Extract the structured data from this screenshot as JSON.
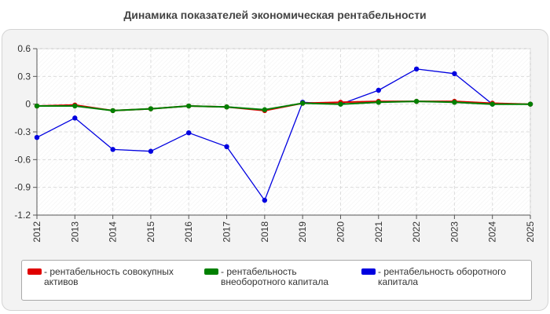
{
  "chart_data": {
    "type": "line",
    "title": "Динамика показателей экономическая рентабельности",
    "x": [
      "2012",
      "2013",
      "2014",
      "2015",
      "2016",
      "2017",
      "2018",
      "2019",
      "2020",
      "2021",
      "2022",
      "2023",
      "2024",
      "2025"
    ],
    "y_ticks": [
      "0.6",
      "0.3",
      "0",
      "-0.3",
      "-0.6",
      "-0.9",
      "-1.2"
    ],
    "ylim": [
      -1.2,
      0.6
    ],
    "grid": true,
    "legend_position": "bottom",
    "series": [
      {
        "name": "рентабельность совокупных активов",
        "color": "#e00000",
        "values": [
          -0.02,
          -0.01,
          -0.07,
          -0.05,
          -0.02,
          -0.03,
          -0.07,
          0.01,
          0.02,
          0.03,
          0.03,
          0.03,
          0.01,
          0.0
        ]
      },
      {
        "name": "рентабельность внеоборотного капитала",
        "color": "#008000",
        "values": [
          -0.02,
          -0.02,
          -0.07,
          -0.05,
          -0.02,
          -0.03,
          -0.06,
          0.01,
          0.0,
          0.02,
          0.03,
          0.02,
          0.0,
          0.0
        ]
      },
      {
        "name": "рентабельность оборотного капитала",
        "color": "#0000e0",
        "values": [
          -0.36,
          -0.15,
          -0.49,
          -0.51,
          -0.31,
          -0.46,
          -1.04,
          0.02,
          0.0,
          0.15,
          0.38,
          0.33,
          0.0,
          0.0
        ]
      }
    ]
  },
  "legend": [
    {
      "prefix": "- ",
      "label": "рентабельность совокупных активов",
      "lines": [
        "рентабельность совокупных",
        "активов"
      ],
      "color": "#e00000"
    },
    {
      "prefix": "- ",
      "label": "рентабельность внеоборотного капитала",
      "lines": [
        "рентабельность",
        "внеоборотного капитала"
      ],
      "color": "#008000"
    },
    {
      "prefix": "- ",
      "label": "рентабельность оборотного капитала",
      "lines": [
        "рентабельность оборотного",
        "капитала"
      ],
      "color": "#0000e0"
    }
  ]
}
